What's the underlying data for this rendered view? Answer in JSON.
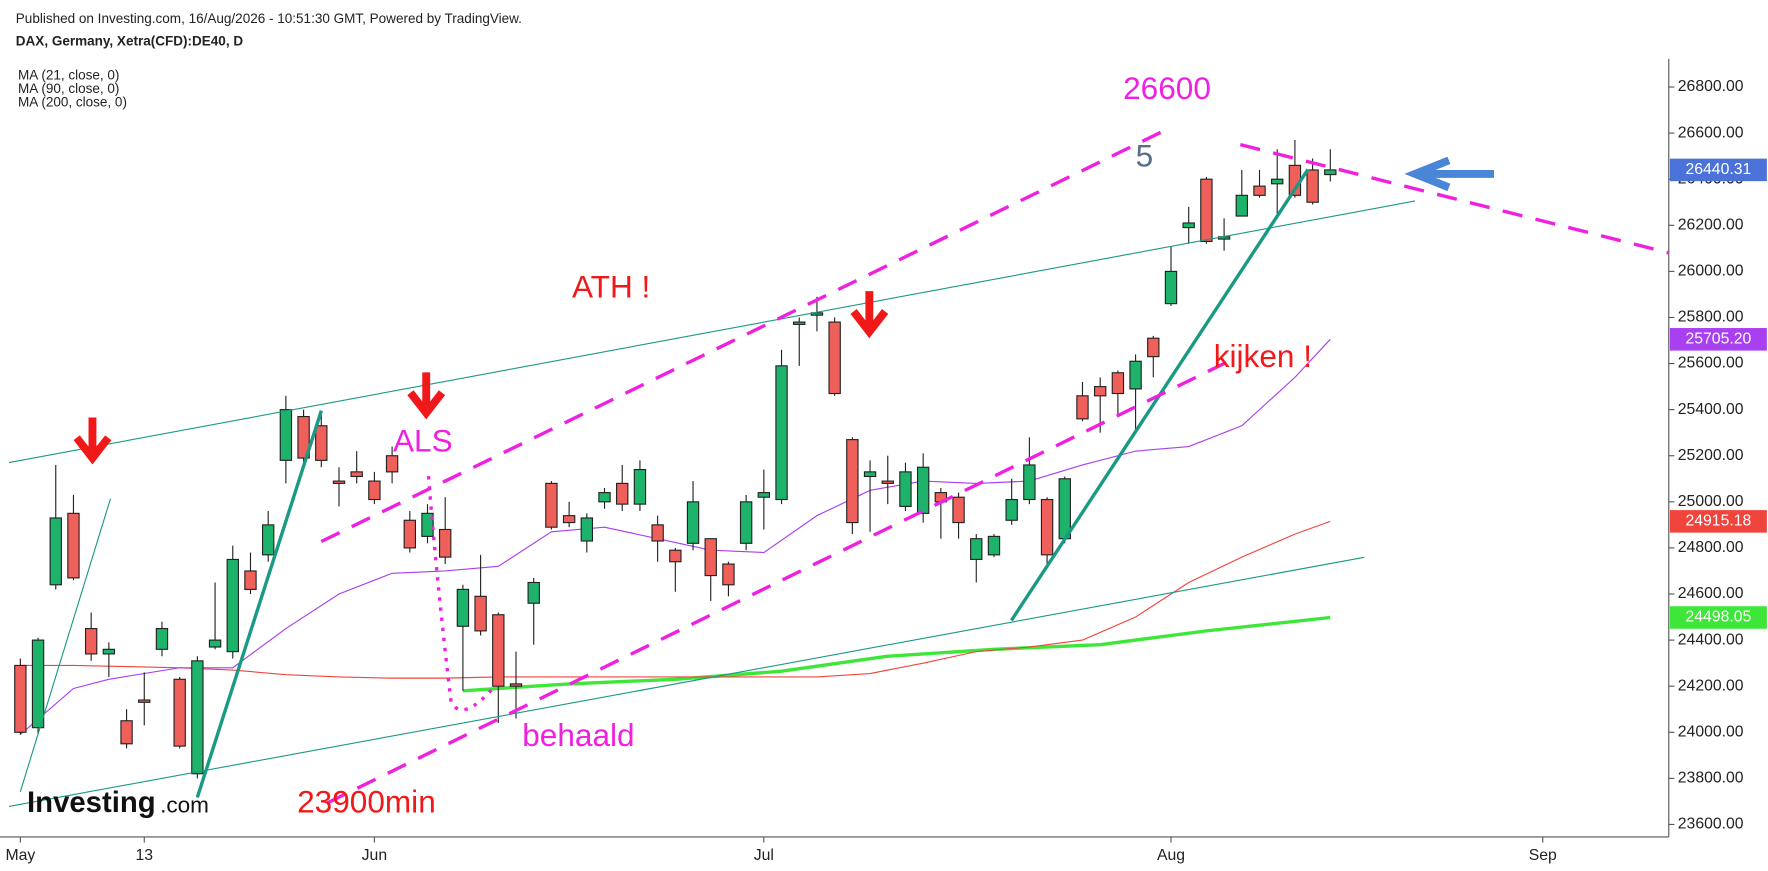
{
  "chart_data": {
    "type": "candlestick",
    "source": "Published on Investing.com, 16/Aug/2026 - 10:51:30 GMT, Powered by TradingView.",
    "title": "DAX, Germany, Xetra(CFD):DE40, D",
    "logo_text": "Investing",
    "logo_suffix": ".com",
    "up_color": "#1eb36b",
    "down_color": "#f0605a",
    "last_color": "#4a72d8",
    "last_label": "26440.31",
    "open": [
      24290,
      24020,
      24640,
      24950,
      24450,
      24340,
      24050,
      24140,
      24360,
      24230,
      23820,
      24370,
      24350,
      24700,
      24770,
      25180,
      25370,
      25330,
      25090,
      25130,
      25090,
      25200,
      24920,
      24850,
      24880,
      24460,
      24590,
      24510,
      24210,
      24560,
      25080,
      24940,
      24830,
      25000,
      25080,
      24990,
      24900,
      24790,
      24820,
      24840,
      24730,
      24820,
      25020,
      25010,
      25770,
      25810,
      25780,
      25270,
      25110,
      25090,
      24980,
      24950,
      25040,
      25020,
      24750,
      24770,
      24920,
      25010,
      25010,
      24840,
      25460,
      25500,
      25560,
      25490,
      25710,
      25860,
      26190,
      26400,
      26140,
      26240,
      26370,
      26380,
      26460,
      26440,
      26420
    ],
    "high": [
      24320,
      24410,
      25160,
      25030,
      24520,
      24390,
      24100,
      24260,
      24480,
      24240,
      24330,
      24650,
      24810,
      24780,
      24960,
      25460,
      25400,
      25380,
      25150,
      25220,
      25130,
      25240,
      24960,
      24990,
      25020,
      24640,
      24770,
      24520,
      24350,
      24670,
      25090,
      25000,
      24950,
      25060,
      25160,
      25180,
      24940,
      24800,
      25090,
      24840,
      24740,
      25030,
      25140,
      25660,
      25800,
      25890,
      25800,
      25280,
      25180,
      25200,
      25170,
      25210,
      25060,
      25040,
      24860,
      24860,
      25100,
      25280,
      25020,
      25110,
      25520,
      25540,
      25570,
      25640,
      25720,
      26110,
      26280,
      26410,
      26230,
      26440,
      26440,
      26530,
      26570,
      26490,
      26530
    ],
    "low": [
      23990,
      23990,
      24620,
      24660,
      24310,
      24240,
      23930,
      24030,
      24330,
      23930,
      23800,
      24360,
      24320,
      24600,
      24740,
      25080,
      25170,
      25150,
      24980,
      25080,
      24990,
      25080,
      24780,
      24820,
      24730,
      24180,
      24420,
      24040,
      24060,
      24380,
      24880,
      24890,
      24780,
      24970,
      24960,
      24960,
      24740,
      24610,
      24790,
      24570,
      24590,
      24790,
      24880,
      24990,
      25590,
      25740,
      25460,
      24860,
      24870,
      24990,
      24960,
      24910,
      24840,
      24840,
      24650,
      24760,
      24900,
      24990,
      24710,
      24820,
      25350,
      25300,
      25380,
      25300,
      25540,
      25850,
      26120,
      26120,
      26090,
      26240,
      26320,
      26250,
      26320,
      26290,
      26390
    ],
    "close": [
      24000,
      24400,
      24930,
      24670,
      24340,
      24360,
      23950,
      24130,
      24450,
      23940,
      24310,
      24400,
      24750,
      24620,
      24900,
      25400,
      25190,
      25180,
      25080,
      25110,
      25010,
      25130,
      24800,
      24950,
      24760,
      24620,
      24440,
      24200,
      24200,
      24650,
      24890,
      24910,
      24930,
      25040,
      24990,
      25140,
      24830,
      24740,
      25000,
      24680,
      24640,
      25000,
      25040,
      25590,
      25780,
      25820,
      25470,
      24910,
      25130,
      25080,
      25130,
      25150,
      25000,
      24910,
      24840,
      24850,
      25010,
      25160,
      24770,
      25100,
      25360,
      25460,
      25470,
      25610,
      25630,
      26000,
      26210,
      26130,
      26150,
      26330,
      26330,
      26400,
      26330,
      26300,
      26440.31
    ],
    "series": [
      {
        "name": "MA (200, close, 0)",
        "color": "#3ee63a",
        "last_label": "24498.05",
        "x": [
          25,
          31,
          37,
          43,
          49,
          55,
          61,
          67,
          74
        ],
        "values": [
          24180,
          24210,
          24230,
          24265,
          24330,
          24360,
          24380,
          24440,
          24498.05
        ]
      },
      {
        "name": "MA (90, close, 0)",
        "color": "#f0453c",
        "last_label": "24915.18",
        "x": [
          0,
          3,
          6,
          9,
          12,
          15,
          18,
          21,
          24,
          27,
          30,
          33,
          36,
          39,
          42,
          45,
          48,
          51,
          54,
          57,
          60,
          63,
          66,
          69,
          72,
          74
        ],
        "values": [
          24290,
          24290,
          24285,
          24280,
          24270,
          24250,
          24240,
          24235,
          24235,
          24240,
          24240,
          24240,
          24240,
          24240,
          24240,
          24240,
          24255,
          24300,
          24350,
          24370,
          24400,
          24500,
          24650,
          24760,
          24860,
          24915.18
        ]
      },
      {
        "name": "MA (21, close, 0)",
        "color": "#a83ff0",
        "last_label": "25705.20",
        "x": [
          0,
          3,
          5,
          9,
          12,
          15,
          18,
          21,
          24,
          27,
          30,
          33,
          36,
          39,
          42,
          45,
          48,
          51,
          54,
          57,
          60,
          63,
          66,
          69,
          72,
          74
        ],
        "values": [
          23990,
          24190,
          24230,
          24280,
          24280,
          24450,
          24600,
          24690,
          24700,
          24720,
          24870,
          24890,
          24840,
          24790,
          24780,
          24940,
          25050,
          25090,
          25080,
          25090,
          25160,
          25220,
          25240,
          25330,
          25540,
          25705.2
        ]
      }
    ],
    "annotations": [
      {
        "text": "26600",
        "color": "#f020e0"
      },
      {
        "text": "5",
        "color": "#5a6e8a"
      },
      {
        "text": "ATH !",
        "color": "#f01818"
      },
      {
        "text": "ALS",
        "color": "#f020e0"
      },
      {
        "text": "kijken !",
        "color": "#f01818"
      },
      {
        "text": "behaald",
        "color": "#f020e0"
      },
      {
        "text": "23900min",
        "color": "#f01818"
      }
    ],
    "xlim": [
      -0.64,
      93.12
    ],
    "xticks": [
      {
        "value": 0,
        "label": "May"
      },
      {
        "value": 7,
        "label": "13"
      },
      {
        "value": 20,
        "label": "Jun"
      },
      {
        "value": 42,
        "label": "Jul"
      },
      {
        "value": 65,
        "label": "Aug"
      },
      {
        "value": 86,
        "label": "Sep"
      }
    ],
    "ylim": [
      23546,
      26922
    ],
    "yticks": [
      {
        "value": 23600,
        "label": "23600.00"
      },
      {
        "value": 23800,
        "label": "23800.00"
      },
      {
        "value": 24000,
        "label": "24000.00"
      },
      {
        "value": 24200,
        "label": "24200.00"
      },
      {
        "value": 24400,
        "label": "24400.00"
      },
      {
        "value": 24600,
        "label": "24600.00"
      },
      {
        "value": 24800,
        "label": "24800.00"
      },
      {
        "value": 25000,
        "label": "25000.00"
      },
      {
        "value": 25200,
        "label": "25200.00"
      },
      {
        "value": 25400,
        "label": "25400.00"
      },
      {
        "value": 25600,
        "label": "25600.00"
      },
      {
        "value": 25800,
        "label": "25800.00"
      },
      {
        "value": 26000,
        "label": "26000.00"
      },
      {
        "value": 26200,
        "label": "26200.00"
      },
      {
        "value": 26400,
        "label": "26400.00"
      },
      {
        "value": 26600,
        "label": "26600.00"
      },
      {
        "value": 26800,
        "label": "26800.00"
      }
    ]
  }
}
